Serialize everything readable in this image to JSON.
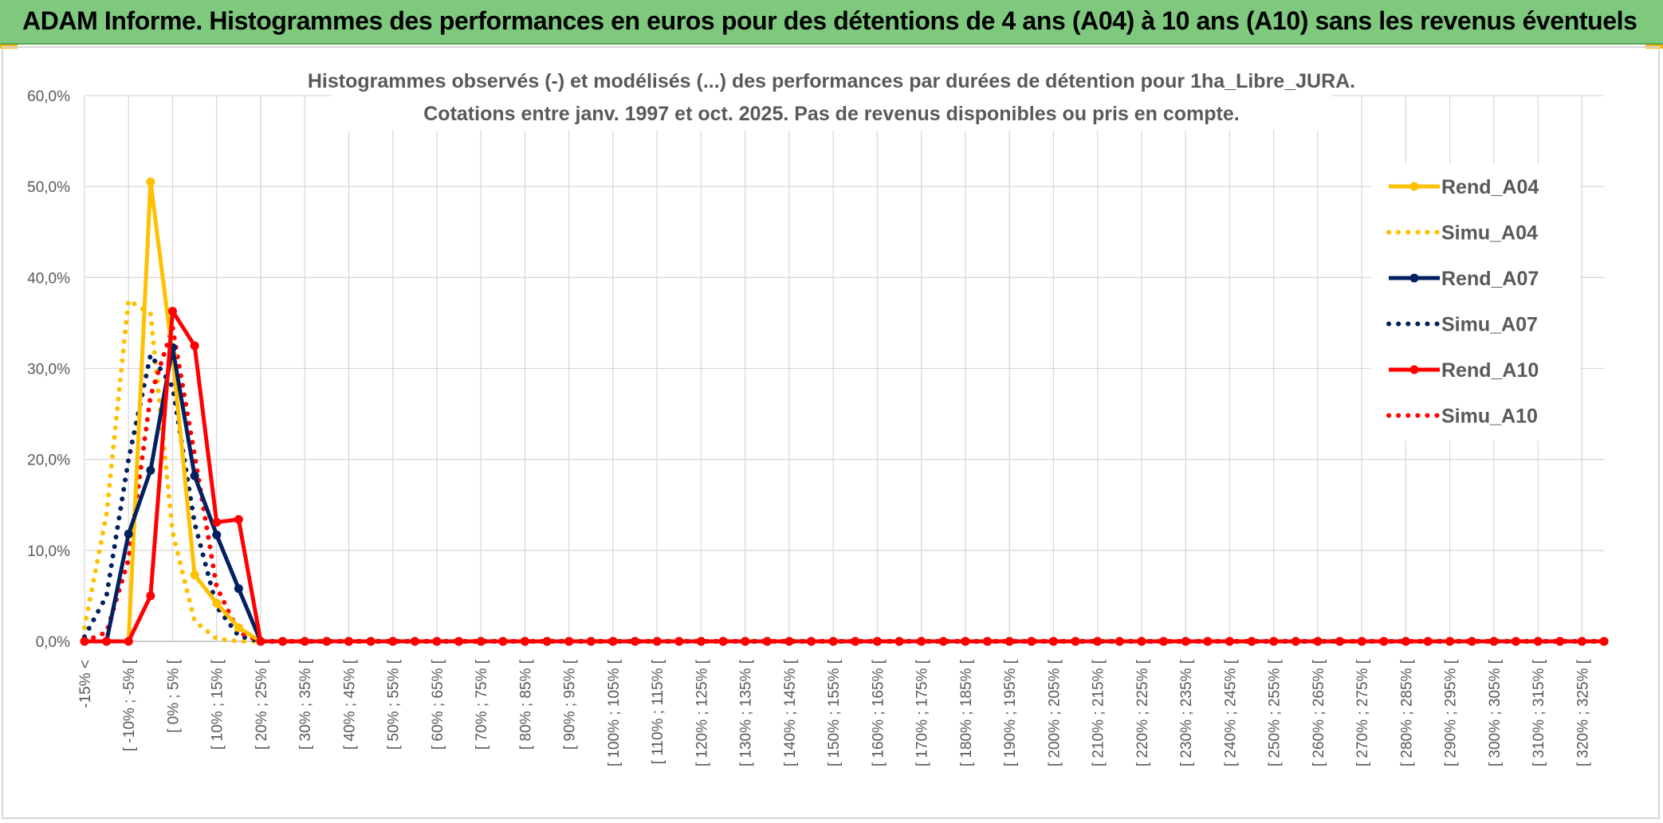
{
  "banner": {
    "title": "ADAM Informe. Histogrammes des performances en euros pour des détentions de 4 ans (A04) à 10 ans (A10) sans les revenus éventuels"
  },
  "colors": {
    "banner_bg": "#7fc97f",
    "A04": "#ffc000",
    "A07": "#002060",
    "A10": "#ff0000"
  },
  "chart_data": {
    "type": "line",
    "title": [
      "Histogrammes observés (-) et modélisés (...) des performances par durées de détention pour 1ha_Libre_JURA.",
      "Cotations entre janv. 1997 et oct. 2025. Pas de revenus disponibles ou pris en compte."
    ],
    "xlabel": "",
    "ylabel": "",
    "ylim": [
      0,
      60
    ],
    "y_ticks": [
      "0,0%",
      "10,0%",
      "20,0%",
      "30,0%",
      "40,0%",
      "50,0%",
      "60,0%"
    ],
    "grid": true,
    "legend_position": "right",
    "categories": [
      "-15% <",
      "[ -15% ; -10% [",
      "[ -10% ; -5% [",
      "[ -5% ; 0% [",
      "[ 0% ; 5% [",
      "[ 5% ; 10% [",
      "[ 10% ; 15% [",
      "[ 15% ; 20% [",
      "[ 20% ; 25% [",
      "[ 25% ; 30% [",
      "[ 30% ; 35% [",
      "[ 35% ; 40% [",
      "[ 40% ; 45% [",
      "[ 45% ; 50% [",
      "[ 50% ; 55% [",
      "[ 55% ; 60% [",
      "[ 60% ; 65% [",
      "[ 65% ; 70% [",
      "[ 70% ; 75% [",
      "[ 75% ; 80% [",
      "[ 80% ; 85% [",
      "[ 85% ; 90% [",
      "[ 90% ; 95% [",
      "[ 95% ; 100% [",
      "[ 100% ; 105% [",
      "[ 105% ; 110% [",
      "[ 110% ; 115% [",
      "[ 115% ; 120% [",
      "[ 120% ; 125% [",
      "[ 125% ; 130% [",
      "[ 130% ; 135% [",
      "[ 135% ; 140% [",
      "[ 140% ; 145% [",
      "[ 145% ; 150% [",
      "[ 150% ; 155% [",
      "[ 155% ; 160% [",
      "[ 160% ; 165% [",
      "[ 165% ; 170% [",
      "[ 170% ; 175% [",
      "[ 175% ; 180% [",
      "[ 180% ; 185% [",
      "[ 185% ; 190% [",
      "[ 190% ; 195% [",
      "[ 195% ; 200% [",
      "[ 200% ; 205% [",
      "[ 205% ; 210% [",
      "[ 210% ; 215% [",
      "[ 215% ; 220% [",
      "[ 220% ; 225% [",
      "[ 225% ; 230% [",
      "[ 230% ; 235% [",
      "[ 235% ; 240% [",
      "[ 240% ; 245% [",
      "[ 245% ; 250% [",
      "[ 250% ; 255% [",
      "[ 255% ; 260% [",
      "[ 260% ; 265% [",
      "[ 265% ; 270% [",
      "[ 270% ; 275% [",
      "[ 275% ; 280% [",
      "[ 280% ; 285% [",
      "[ 285% ; 290% [",
      "[ 290% ; 295% [",
      "[ 295% ; 300% [",
      "[ 300% ; 305% [",
      "[ 305% ; 310% [",
      "[ 310% ; 315% [",
      "[ 315% ; 320% [",
      "[ 320% ; 325% [",
      "[ 325% ; 330% ["
    ],
    "visible_tick_labels": [
      "-15% <",
      "[ -10% ; -5% [",
      "[ 0% ; 5% [",
      "[ 10% ; 15% [",
      "[ 20% ; 25% [",
      "[ 30% ; 35% [",
      "[ 40% ; 45% [",
      "[ 50% ; 55% [",
      "[ 60% ; 65% [",
      "[ 70% ; 75% [",
      "[ 80% ; 85% [",
      "[ 90% ; 95% [",
      "[ 100% ; 105% [",
      "[ 110% ; 115% [",
      "[ 120% ; 125% [",
      "[ 130% ; 135% [",
      "[ 140% ; 145% [",
      "[ 150% ; 155% [",
      "[ 160% ; 165% [",
      "[ 170% ; 175% [",
      "[ 180% ; 185% [",
      "[ 190% ; 195% [",
      "[ 200% ; 205% [",
      "[ 210% ; 215% [",
      "[ 220% ; 225% [",
      "[ 230% ; 235% [",
      "[ 240% ; 245% [",
      "[ 250% ; 255% [",
      "[ 260% ; 265% [",
      "[ 270% ; 275% [",
      "[ 280% ; 285% [",
      "[ 290% ; 295% [",
      "[ 300% ; 305% [",
      "[ 310% ; 315% [",
      "[ 320% ; 325% ["
    ],
    "series": [
      {
        "name": "Rend_A04",
        "style": "solid",
        "markers": true,
        "color": "#ffc000",
        "values": [
          0,
          0,
          0,
          50.5,
          31.5,
          7.3,
          4.2,
          1.5,
          0,
          0,
          0,
          0,
          0,
          0,
          0,
          0,
          0,
          0,
          0,
          0,
          0,
          0,
          0,
          0,
          0,
          0,
          0,
          0,
          0,
          0,
          0,
          0,
          0,
          0,
          0,
          0,
          0,
          0,
          0,
          0,
          0,
          0,
          0,
          0,
          0,
          0,
          0,
          0,
          0,
          0,
          0,
          0,
          0,
          0,
          0,
          0,
          0,
          0,
          0,
          0,
          0,
          0,
          0,
          0,
          0,
          0,
          0,
          0,
          0,
          0
        ]
      },
      {
        "name": "Simu_A04",
        "style": "dotted",
        "markers": false,
        "color": "#ffc000",
        "values": [
          1.5,
          14,
          37.5,
          36,
          12,
          2.2,
          0.3,
          0,
          0,
          0,
          0,
          0,
          0,
          0,
          0,
          0,
          0,
          0,
          0,
          0,
          0,
          0,
          0,
          0,
          0,
          0,
          0,
          0,
          0,
          0,
          0,
          0,
          0,
          0,
          0,
          0,
          0,
          0,
          0,
          0,
          0,
          0,
          0,
          0,
          0,
          0,
          0,
          0,
          0,
          0,
          0,
          0,
          0,
          0,
          0,
          0,
          0,
          0,
          0,
          0,
          0,
          0,
          0,
          0,
          0,
          0,
          0,
          0,
          0,
          0
        ]
      },
      {
        "name": "Rend_A07",
        "style": "solid",
        "markers": true,
        "color": "#002060",
        "values": [
          0,
          0,
          11.8,
          18.8,
          32.3,
          18.2,
          11.7,
          5.8,
          0,
          0,
          0,
          0,
          0,
          0,
          0,
          0,
          0,
          0,
          0,
          0,
          0,
          0,
          0,
          0,
          0,
          0,
          0,
          0,
          0,
          0,
          0,
          0,
          0,
          0,
          0,
          0,
          0,
          0,
          0,
          0,
          0,
          0,
          0,
          0,
          0,
          0,
          0,
          0,
          0,
          0,
          0,
          0,
          0,
          0,
          0,
          0,
          0,
          0,
          0,
          0,
          0,
          0,
          0,
          0,
          0,
          0,
          0,
          0,
          0,
          0
        ]
      },
      {
        "name": "Simu_A07",
        "style": "dotted",
        "markers": false,
        "color": "#002060",
        "values": [
          0.5,
          5,
          20,
          31.5,
          28,
          13,
          3.8,
          0.6,
          0,
          0,
          0,
          0,
          0,
          0,
          0,
          0,
          0,
          0,
          0,
          0,
          0,
          0,
          0,
          0,
          0,
          0,
          0,
          0,
          0,
          0,
          0,
          0,
          0,
          0,
          0,
          0,
          0,
          0,
          0,
          0,
          0,
          0,
          0,
          0,
          0,
          0,
          0,
          0,
          0,
          0,
          0,
          0,
          0,
          0,
          0,
          0,
          0,
          0,
          0,
          0,
          0,
          0,
          0,
          0,
          0,
          0,
          0,
          0,
          0,
          0
        ]
      },
      {
        "name": "Rend_A10",
        "style": "solid",
        "markers": true,
        "color": "#ff0000",
        "values": [
          0,
          0,
          0,
          5,
          36.3,
          32.5,
          13.1,
          13.4,
          0,
          0,
          0,
          0,
          0,
          0,
          0,
          0,
          0,
          0,
          0,
          0,
          0,
          0,
          0,
          0,
          0,
          0,
          0,
          0,
          0,
          0,
          0,
          0,
          0,
          0,
          0,
          0,
          0,
          0,
          0,
          0,
          0,
          0,
          0,
          0,
          0,
          0,
          0,
          0,
          0,
          0,
          0,
          0,
          0,
          0,
          0,
          0,
          0,
          0,
          0,
          0,
          0,
          0,
          0,
          0,
          0,
          0,
          0,
          0,
          0,
          0
        ]
      },
      {
        "name": "Simu_A10",
        "style": "dotted",
        "markers": false,
        "color": "#ff0000",
        "values": [
          0,
          1,
          9,
          27,
          34.5,
          20.5,
          6,
          1,
          0,
          0,
          0,
          0,
          0,
          0,
          0,
          0,
          0,
          0,
          0,
          0,
          0,
          0,
          0,
          0,
          0,
          0,
          0,
          0,
          0,
          0,
          0,
          0,
          0,
          0,
          0,
          0,
          0,
          0,
          0,
          0,
          0,
          0,
          0,
          0,
          0,
          0,
          0,
          0,
          0,
          0,
          0,
          0,
          0,
          0,
          0,
          0,
          0,
          0,
          0,
          0,
          0,
          0,
          0,
          0,
          0,
          0,
          0,
          0,
          0,
          0
        ]
      }
    ]
  }
}
